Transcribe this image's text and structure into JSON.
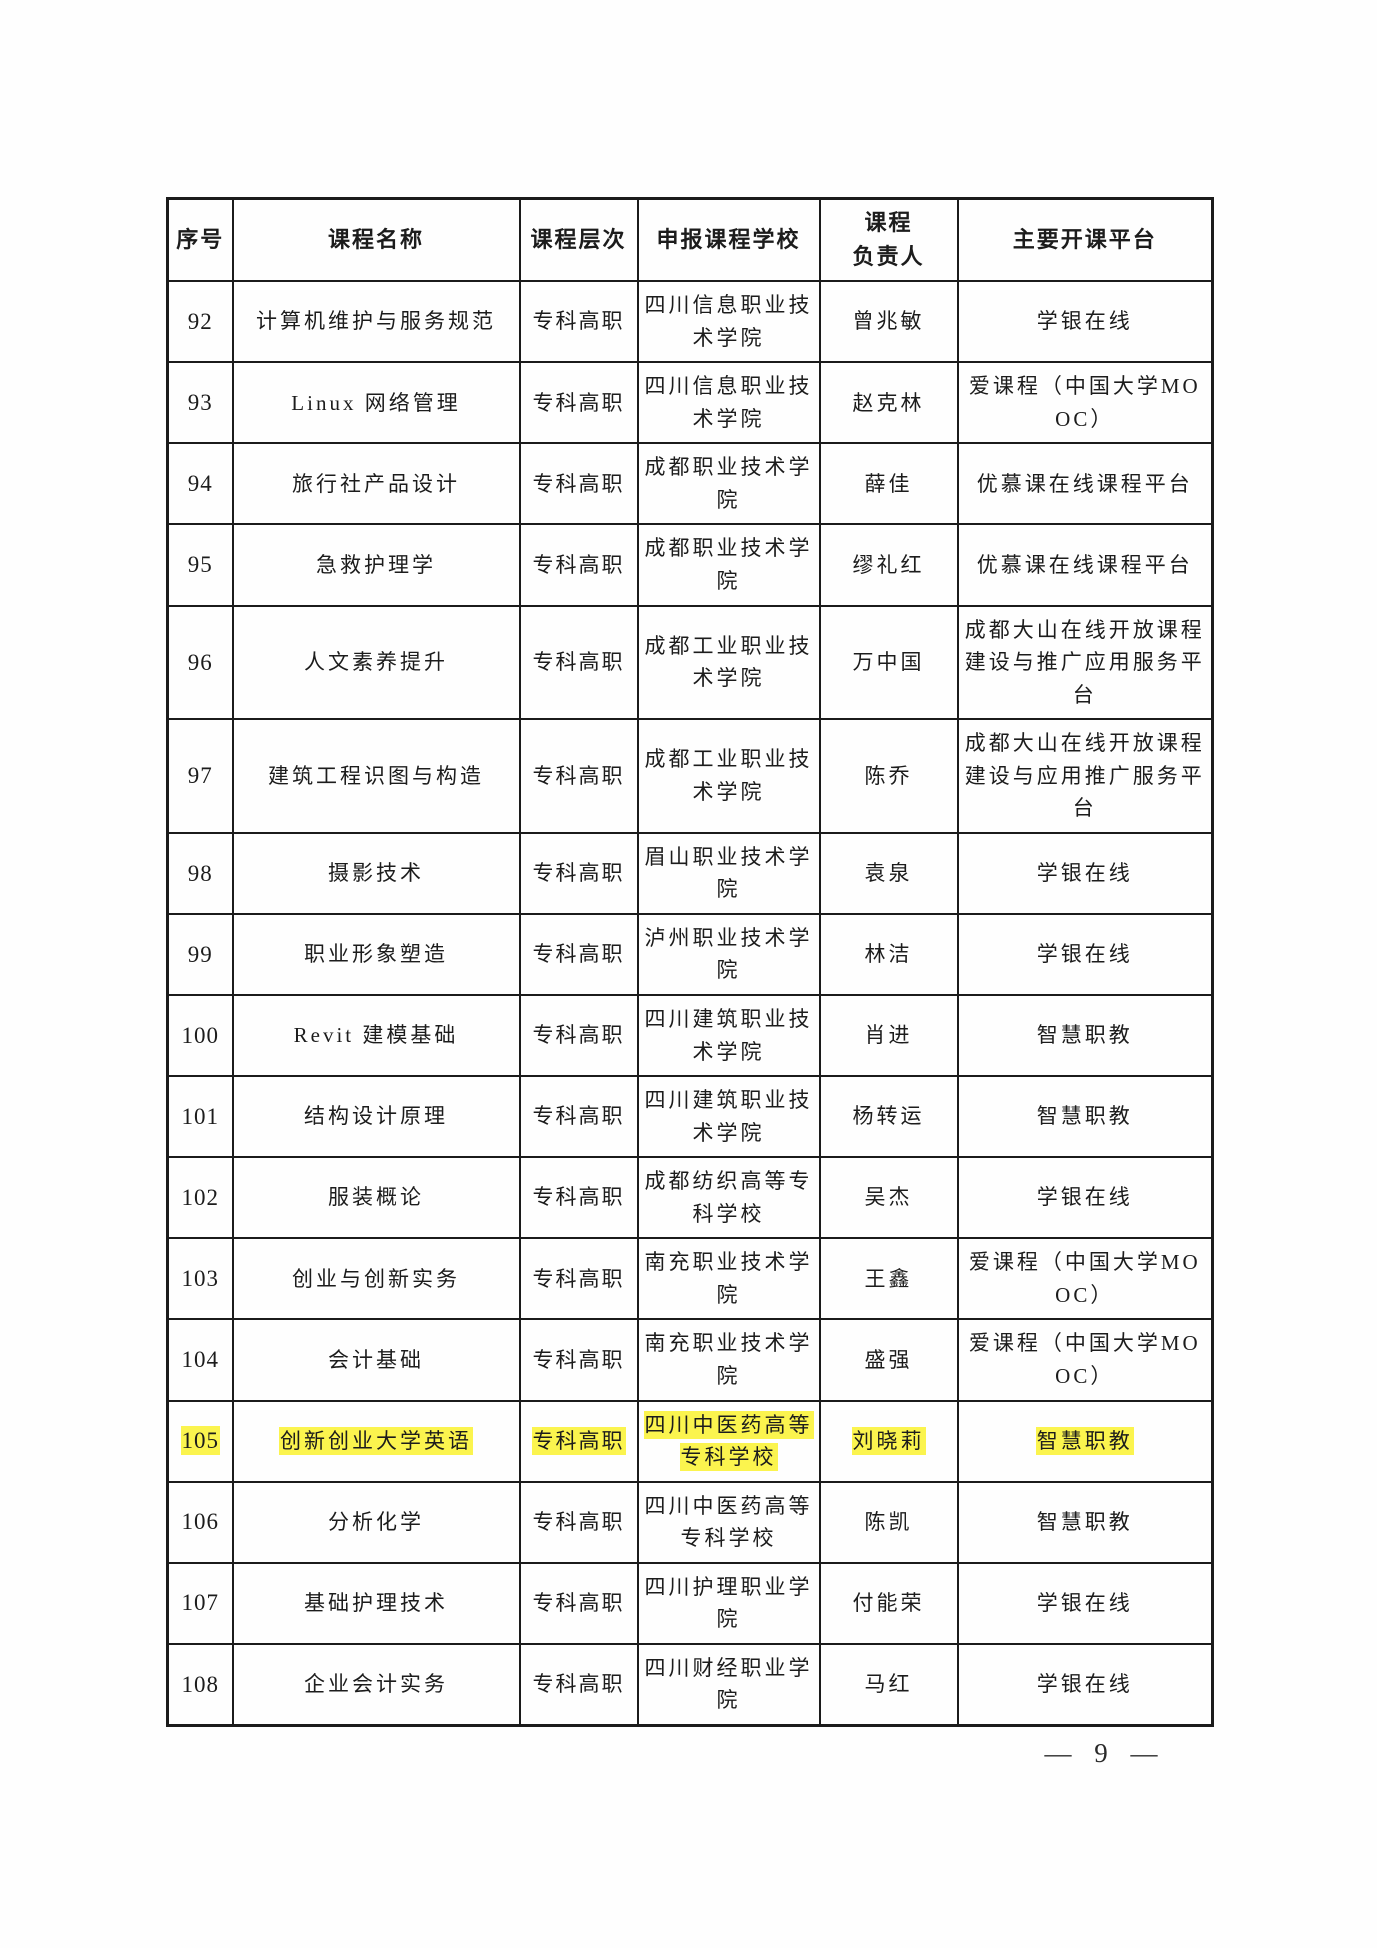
{
  "document": {
    "footer": {
      "page_number": "— 9 —"
    },
    "highlight_color": "#fbf44e",
    "table": {
      "columns": [
        {
          "key": "index",
          "label": "序号"
        },
        {
          "key": "course",
          "label": "课程名称"
        },
        {
          "key": "level",
          "label": "课程层次"
        },
        {
          "key": "school",
          "label": "申报课程学校"
        },
        {
          "key": "leader",
          "label": "课程\n负责人"
        },
        {
          "key": "platform",
          "label": "主要开课平台"
        }
      ],
      "rows": [
        {
          "index": "92",
          "course": "计算机维护与服务规范",
          "level": "专科高职",
          "school": "四川信息职业技术学院",
          "leader": "曾兆敏",
          "platform": "学银在线",
          "highlighted": false
        },
        {
          "index": "93",
          "course": "Linux 网络管理",
          "level": "专科高职",
          "school": "四川信息职业技术学院",
          "leader": "赵克林",
          "platform": "爱课程（中国大学MOOC）",
          "highlighted": false
        },
        {
          "index": "94",
          "course": "旅行社产品设计",
          "level": "专科高职",
          "school": "成都职业技术学院",
          "leader": "薛佳",
          "platform": "优慕课在线课程平台",
          "highlighted": false
        },
        {
          "index": "95",
          "course": "急救护理学",
          "level": "专科高职",
          "school": "成都职业技术学院",
          "leader": "缪礼红",
          "platform": "优慕课在线课程平台",
          "highlighted": false
        },
        {
          "index": "96",
          "course": "人文素养提升",
          "level": "专科高职",
          "school": "成都工业职业技术学院",
          "leader": "万中国",
          "platform": "成都大山在线开放课程建设与推广应用服务平台",
          "highlighted": false
        },
        {
          "index": "97",
          "course": "建筑工程识图与构造",
          "level": "专科高职",
          "school": "成都工业职业技术学院",
          "leader": "陈乔",
          "platform": "成都大山在线开放课程建设与应用推广服务平台",
          "highlighted": false
        },
        {
          "index": "98",
          "course": "摄影技术",
          "level": "专科高职",
          "school": "眉山职业技术学院",
          "leader": "袁泉",
          "platform": "学银在线",
          "highlighted": false
        },
        {
          "index": "99",
          "course": "职业形象塑造",
          "level": "专科高职",
          "school": "泸州职业技术学院",
          "leader": "林洁",
          "platform": "学银在线",
          "highlighted": false
        },
        {
          "index": "100",
          "course": "Revit 建模基础",
          "level": "专科高职",
          "school": "四川建筑职业技术学院",
          "leader": "肖进",
          "platform": "智慧职教",
          "highlighted": false
        },
        {
          "index": "101",
          "course": "结构设计原理",
          "level": "专科高职",
          "school": "四川建筑职业技术学院",
          "leader": "杨转运",
          "platform": "智慧职教",
          "highlighted": false
        },
        {
          "index": "102",
          "course": "服装概论",
          "level": "专科高职",
          "school": "成都纺织高等专科学校",
          "leader": "吴杰",
          "platform": "学银在线",
          "highlighted": false
        },
        {
          "index": "103",
          "course": "创业与创新实务",
          "level": "专科高职",
          "school": "南充职业技术学院",
          "leader": "王鑫",
          "platform": "爱课程（中国大学MOOC）",
          "highlighted": false
        },
        {
          "index": "104",
          "course": "会计基础",
          "level": "专科高职",
          "school": "南充职业技术学院",
          "leader": "盛强",
          "platform": "爱课程（中国大学MOOC）",
          "highlighted": false
        },
        {
          "index": "105",
          "course": "创新创业大学英语",
          "level": "专科高职",
          "school": "四川中医药高等专科学校",
          "leader": "刘晓莉",
          "platform": "智慧职教",
          "highlighted": true
        },
        {
          "index": "106",
          "course": "分析化学",
          "level": "专科高职",
          "school": "四川中医药高等专科学校",
          "leader": "陈凯",
          "platform": "智慧职教",
          "highlighted": false
        },
        {
          "index": "107",
          "course": "基础护理技术",
          "level": "专科高职",
          "school": "四川护理职业学院",
          "leader": "付能荣",
          "platform": "学银在线",
          "highlighted": false
        },
        {
          "index": "108",
          "course": "企业会计实务",
          "level": "专科高职",
          "school": "四川财经职业学院",
          "leader": "马红",
          "platform": "学银在线",
          "highlighted": false
        }
      ]
    }
  }
}
